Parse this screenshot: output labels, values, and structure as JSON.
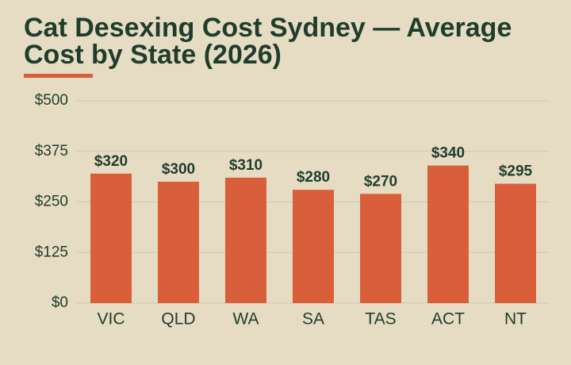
{
  "chart_data": {
    "type": "bar",
    "title": "Cat Desexing Cost Sydney — Average Cost by State (2026)",
    "categories": [
      "VIC",
      "QLD",
      "WA",
      "SA",
      "TAS",
      "ACT",
      "NT"
    ],
    "values": [
      320,
      300,
      310,
      280,
      270,
      340,
      295
    ],
    "value_labels": [
      "$320",
      "$300",
      "$310",
      "$280",
      "$270",
      "$340",
      "$295"
    ],
    "color": "#d95f3b",
    "ylim": [
      0,
      500
    ],
    "yticks": [
      {
        "value": 0,
        "label": "$0"
      },
      {
        "value": 125,
        "label": "$125"
      },
      {
        "value": 250,
        "label": "$250"
      },
      {
        "value": 375,
        "label": "$375"
      },
      {
        "value": 500,
        "label": "$500"
      }
    ],
    "grid": true
  }
}
